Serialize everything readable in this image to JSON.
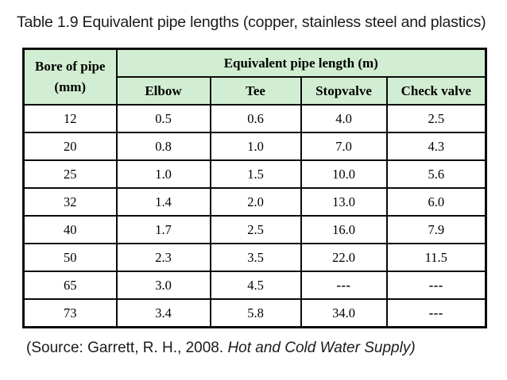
{
  "slide": {
    "title": "Table 1.9 Equivalent pipe lengths (copper, stainless steel and plastics)",
    "source_prefix": "(Source: Garrett, R. H., 2008. ",
    "source_italic": "Hot and Cold Water Supply)"
  },
  "colors": {
    "header_bg": "#d2eed2",
    "border": "#0a0a0a",
    "background": "#ffffff",
    "text": "#000000"
  },
  "table": {
    "bore_header_line1": "Bore of pipe",
    "bore_header_line2": "(mm)",
    "group_header": "Equivalent pipe length (m)",
    "columns": [
      "Elbow",
      "Tee",
      "Stopvalve",
      "Check valve"
    ],
    "rows": [
      {
        "bore": "12",
        "elbow": "0.5",
        "tee": "0.6",
        "stopvalve": "4.0",
        "check_valve": "2.5"
      },
      {
        "bore": "20",
        "elbow": "0.8",
        "tee": "1.0",
        "stopvalve": "7.0",
        "check_valve": "4.3"
      },
      {
        "bore": "25",
        "elbow": "1.0",
        "tee": "1.5",
        "stopvalve": "10.0",
        "check_valve": "5.6"
      },
      {
        "bore": "32",
        "elbow": "1.4",
        "tee": "2.0",
        "stopvalve": "13.0",
        "check_valve": "6.0"
      },
      {
        "bore": "40",
        "elbow": "1.7",
        "tee": "2.5",
        "stopvalve": "16.0",
        "check_valve": "7.9"
      },
      {
        "bore": "50",
        "elbow": "2.3",
        "tee": "3.5",
        "stopvalve": "22.0",
        "check_valve": "11.5"
      },
      {
        "bore": "65",
        "elbow": "3.0",
        "tee": "4.5",
        "stopvalve": "---",
        "check_valve": "---"
      },
      {
        "bore": "73",
        "elbow": "3.4",
        "tee": "5.8",
        "stopvalve": "34.0",
        "check_valve": "---"
      }
    ]
  },
  "chart_data": {
    "type": "table",
    "title": "Table 1.9 Equivalent pipe lengths (copper, stainless steel and plastics)",
    "columns": [
      "Bore of pipe (mm)",
      "Elbow",
      "Tee",
      "Stopvalve",
      "Check valve"
    ],
    "rows": [
      [
        "12",
        "0.5",
        "0.6",
        "4.0",
        "2.5"
      ],
      [
        "20",
        "0.8",
        "1.0",
        "7.0",
        "4.3"
      ],
      [
        "25",
        "1.0",
        "1.5",
        "10.0",
        "5.6"
      ],
      [
        "32",
        "1.4",
        "2.0",
        "13.0",
        "6.0"
      ],
      [
        "40",
        "1.7",
        "2.5",
        "16.0",
        "7.9"
      ],
      [
        "50",
        "2.3",
        "3.5",
        "22.0",
        "11.5"
      ],
      [
        "65",
        "3.0",
        "4.5",
        "---",
        "---"
      ],
      [
        "73",
        "3.4",
        "5.8",
        "34.0",
        "---"
      ]
    ]
  }
}
